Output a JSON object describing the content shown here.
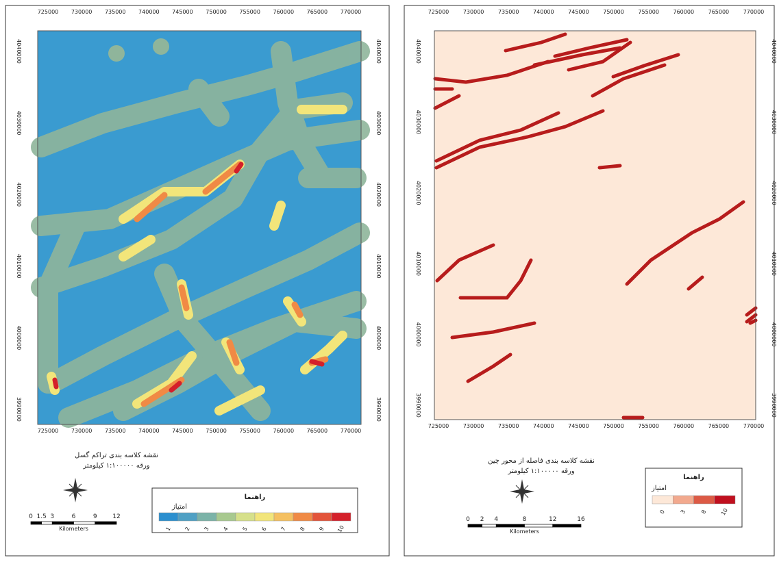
{
  "panels": [
    {
      "title_lines": [
        "نقشه کلاسه بندی تراکم گسل",
        "ورقه ۱:۱۰۰۰۰۰ کیلومتر"
      ],
      "x_ticks": [
        725000,
        730000,
        735000,
        740000,
        745000,
        750000,
        755000,
        760000,
        765000,
        770000
      ],
      "y_ticks": [
        4040000,
        4030000,
        4020000,
        4010000,
        4000000,
        3990000
      ],
      "legend": {
        "title": "راهنما",
        "subtitle": "امتیاز",
        "classes": [
          {
            "label": "1",
            "color": "#2b8fcf"
          },
          {
            "label": "2",
            "color": "#4fa0c4"
          },
          {
            "label": "3",
            "color": "#7bb3a8"
          },
          {
            "label": "4",
            "color": "#a8c98f"
          },
          {
            "label": "5",
            "color": "#d6e08a"
          },
          {
            "label": "6",
            "color": "#f2e57a"
          },
          {
            "label": "7",
            "color": "#f5c060"
          },
          {
            "label": "8",
            "color": "#f08a45"
          },
          {
            "label": "9",
            "color": "#e3543a"
          },
          {
            "label": "10",
            "color": "#d4202a"
          }
        ]
      },
      "scale_bar": {
        "labels": [
          "0",
          "1.5",
          "3",
          "6",
          "9",
          "12"
        ],
        "unit": "Kilometers"
      }
    },
    {
      "title_lines": [
        "نقشه کلاسه بندی فاصله از محور چین",
        "ورقه ۱:۱۰۰۰۰۰ کیلومتر"
      ],
      "x_ticks": [
        725000,
        730000,
        735000,
        740000,
        745000,
        750000,
        755000,
        760000,
        765000,
        770000
      ],
      "y_ticks": [
        4040000,
        4030000,
        4020000,
        4010000,
        4000000,
        3990000
      ],
      "legend": {
        "title": "راهنما",
        "subtitle": "امتیاز",
        "classes": [
          {
            "label": "0",
            "color": "#fde8d8"
          },
          {
            "label": "3",
            "color": "#f2a98e"
          },
          {
            "label": "8",
            "color": "#dc5a45"
          },
          {
            "label": "10",
            "color": "#c0101f"
          }
        ]
      },
      "scale_bar": {
        "labels": [
          "0",
          "2",
          "4",
          "8",
          "12",
          "16"
        ],
        "unit": "Kilometers"
      }
    }
  ]
}
